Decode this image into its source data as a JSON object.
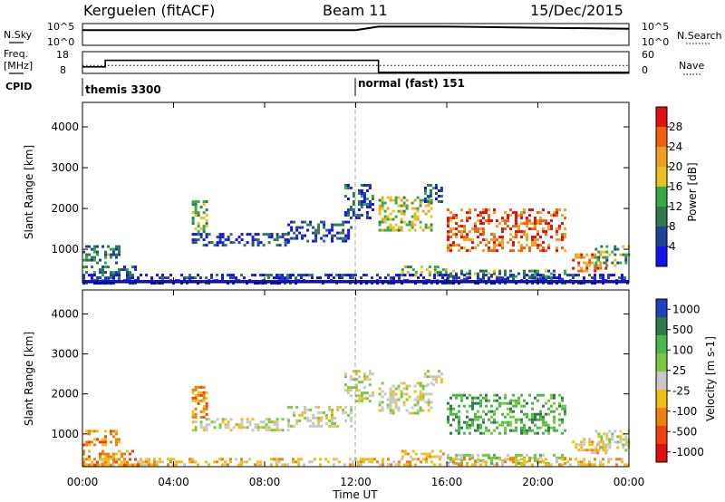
{
  "header": {
    "station": "Kerguelen (fitACF)",
    "beam": "Beam 11",
    "date": "15/Dec/2015"
  },
  "left_labels": {
    "nsky": "N.Sky",
    "freq": "Freq.",
    "freq_unit": "[MHz]",
    "cpid": "CPID"
  },
  "right_labels": {
    "nsearch": "N.Search",
    "nave": "Nave"
  },
  "colors": {
    "power_scale": [
      "#1010f0",
      "#20409a",
      "#2e7a4a",
      "#33aa44",
      "#e8c020",
      "#f0a020",
      "#f06010",
      "#e01010"
    ],
    "velocity_scale": [
      "#2040c0",
      "#2e7a4a",
      "#48b848",
      "#7ac840",
      "#c8c8c8",
      "#f0c010",
      "#f08010",
      "#f04010",
      "#e01010"
    ]
  },
  "chart_data": [
    {
      "type": "line",
      "name": "noise-panel",
      "left_axis": {
        "ticks": [
          "10^5",
          "10^0"
        ]
      },
      "right_axis": {
        "ticks": [
          "10^5",
          "10^0"
        ]
      },
      "series": [
        {
          "name": "N.Sky",
          "style": "solid",
          "x": [
            "00:00",
            "12:00",
            "13:00",
            "16:00",
            "24:00"
          ],
          "y_log10": [
            3.5,
            3.5,
            4.3,
            4.3,
            3.8
          ]
        },
        {
          "name": "N.Search",
          "style": "dotted"
        }
      ]
    },
    {
      "type": "line",
      "name": "frequency-panel",
      "left_axis": {
        "ticks": [
          "18",
          "8"
        ]
      },
      "right_axis": {
        "ticks": [
          "60",
          "0"
        ]
      },
      "series": [
        {
          "name": "Freq.",
          "style": "solid",
          "x": [
            "00:00",
            "01:00",
            "01:00",
            "13:00",
            "13:00",
            "24:00"
          ],
          "y": [
            11,
            11,
            14,
            14,
            8.5,
            8.5
          ]
        },
        {
          "name": "Nave",
          "style": "dotted",
          "x": [
            "00:00",
            "24:00"
          ],
          "y_right": [
            22,
            22
          ]
        }
      ]
    },
    {
      "type": "table",
      "name": "cpid-strip",
      "entries": [
        {
          "label": "themis 3300",
          "start": "00:00"
        },
        {
          "label": "normal (fast) 151",
          "start": "12:00"
        }
      ]
    },
    {
      "type": "heatmap",
      "name": "power-panel",
      "ylabel": "Slant Range [km]",
      "xlabel": "",
      "xlim": [
        "00:00",
        "24:00"
      ],
      "ylim": [
        180,
        4600
      ],
      "yticks": [
        1000,
        2000,
        3000,
        4000
      ],
      "colorbar": {
        "label": "Power [dB]",
        "range": [
          0,
          32
        ],
        "ticks": [
          4,
          8,
          12,
          16,
          20,
          24,
          28
        ]
      }
    },
    {
      "type": "heatmap",
      "name": "velocity-panel",
      "ylabel": "Slant Range [km]",
      "xlabel": "Time UT",
      "xlim": [
        "00:00",
        "24:00"
      ],
      "ylim": [
        180,
        4600
      ],
      "xticks": [
        "00:00",
        "04:00",
        "08:00",
        "12:00",
        "16:00",
        "20:00",
        "00:00"
      ],
      "yticks": [
        1000,
        2000,
        3000,
        4000
      ],
      "colorbar": {
        "label": "Velocity [m s-1]",
        "ticks": [
          1000,
          500,
          100,
          25,
          -25,
          -100,
          -500,
          -1000
        ]
      }
    }
  ],
  "bands": [
    {
      "t0": 0.0,
      "t1": 1.6,
      "r0": 700,
      "r1": 1100,
      "pk": 0.3,
      "vk": 6
    },
    {
      "t0": 0.0,
      "t1": 2.5,
      "r0": 200,
      "r1": 600,
      "pk": 0.25,
      "vk": 6
    },
    {
      "t0": 4.8,
      "t1": 5.4,
      "r0": 1400,
      "r1": 2200,
      "pk": 0.45,
      "vk": 6
    },
    {
      "t0": 4.8,
      "t1": 9.0,
      "r0": 1100,
      "r1": 1400,
      "pk": 0.15,
      "vk": 4
    },
    {
      "t0": 9.0,
      "t1": 11.8,
      "r0": 1200,
      "r1": 1700,
      "pk": 0.15,
      "vk": 4
    },
    {
      "t0": 11.5,
      "t1": 12.7,
      "r0": 1800,
      "r1": 2600,
      "pk": 0.18,
      "vk": 4
    },
    {
      "t0": 13.0,
      "t1": 15.3,
      "r0": 1500,
      "r1": 2300,
      "pk": 0.55,
      "vk": 4
    },
    {
      "t0": 15.0,
      "t1": 15.8,
      "r0": 2200,
      "r1": 2600,
      "pk": 0.2,
      "vk": 4
    },
    {
      "t0": 14.0,
      "t1": 16.0,
      "r0": 400,
      "r1": 600,
      "pk": 0.5,
      "vk": 5
    },
    {
      "t0": 16.0,
      "t1": 21.2,
      "r0": 1000,
      "r1": 2000,
      "pk": 0.85,
      "vk": 2
    },
    {
      "t0": 16.0,
      "t1": 21.2,
      "r0": 250,
      "r1": 500,
      "pk": 0.35,
      "vk": 3
    },
    {
      "t0": 21.5,
      "t1": 23.0,
      "r0": 500,
      "r1": 900,
      "pk": 0.8,
      "vk": 5
    },
    {
      "t0": 22.5,
      "t1": 24.0,
      "r0": 600,
      "r1": 1100,
      "pk": 0.4,
      "vk": 4
    },
    {
      "t0": 0.0,
      "t1": 24.0,
      "r0": 200,
      "r1": 400,
      "pk": 0.1,
      "vk": 5
    }
  ]
}
